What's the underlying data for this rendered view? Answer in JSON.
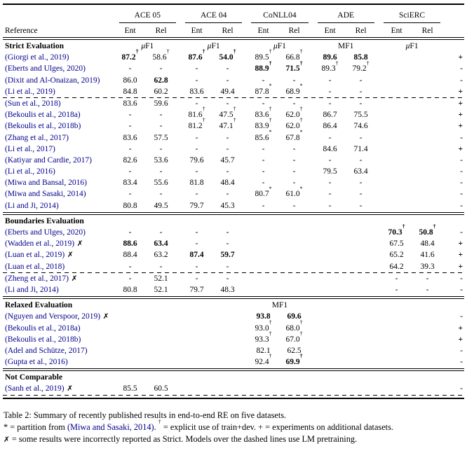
{
  "colors": {
    "citation_link": "#00008b",
    "text": "#000000",
    "background": "#ffffff"
  },
  "table": {
    "reference_label": "Reference",
    "datasets": [
      "ACE 05",
      "ACE 04",
      "CoNLL04",
      "ADE",
      "SciERC"
    ],
    "subheader": [
      "Ent",
      "Rel"
    ],
    "sections": [
      {
        "title": "Strict Evaluation",
        "metrics": [
          "μF1",
          "μF1",
          "μF1",
          "MF1",
          "μF1"
        ],
        "rows": [
          {
            "ref": "(Giorgi et al., 2019)",
            "cells": [
              {
                "v": "87.2",
                "sup": "†",
                "b": 1
              },
              {
                "v": "58.6",
                "sup": "†"
              },
              {
                "v": "87.6",
                "sup": "†",
                "b": 1
              },
              {
                "v": "54.0",
                "sup": "†",
                "b": 1
              },
              {
                "v": "89.5",
                "sup": "†"
              },
              {
                "v": "66.8",
                "sup": "†"
              },
              {
                "v": "89.6",
                "b": 1
              },
              {
                "v": "85.8",
                "b": 1
              },
              "",
              ""
            ],
            "marker": "+"
          },
          {
            "ref": "(Eberts and Ulges, 2020)",
            "cells": [
              "-",
              "-",
              "-",
              "-",
              {
                "v": "88.9",
                "sup": "†",
                "b": 1
              },
              {
                "v": "71.5",
                "sup": "†",
                "b": 1
              },
              {
                "v": "89.3",
                "sup": "†"
              },
              {
                "v": "79.2",
                "sup": "†"
              },
              "",
              ""
            ],
            "marker": "-"
          },
          {
            "ref": "(Dixit and Al-Onaizan, 2019)",
            "cells": [
              "86.0",
              {
                "v": "62.8",
                "b": 1
              },
              "-",
              "-",
              "-",
              "-",
              "-",
              "-",
              "",
              ""
            ],
            "marker": "-"
          },
          {
            "ref": "(Li et al., 2019)",
            "cells": [
              "84.8",
              "60.2",
              "83.6",
              "49.4",
              {
                "v": "87.8",
                "sup": "*"
              },
              {
                "v": "68.9",
                "sup": "*"
              },
              "-",
              "-",
              "",
              ""
            ],
            "marker": "+",
            "dashed_below": true
          },
          {
            "ref": "(Sun et al., 2018)",
            "cells": [
              "83.6",
              "59.6",
              "-",
              "-",
              "-",
              "-",
              "-",
              "-",
              "",
              ""
            ],
            "marker": "+"
          },
          {
            "ref": "(Bekoulis et al., 2018a)",
            "cells": [
              "-",
              "-",
              {
                "v": "81.6",
                "sup": "†"
              },
              {
                "v": "47.5",
                "sup": "†"
              },
              {
                "v": "83.6",
                "sup": "†"
              },
              {
                "v": "62.0",
                "sup": "†"
              },
              "86.7",
              "75.5",
              "",
              ""
            ],
            "marker": "+"
          },
          {
            "ref": "(Bekoulis et al., 2018b)",
            "cells": [
              "-",
              "-",
              {
                "v": "81.2",
                "sup": "†"
              },
              {
                "v": "47.1",
                "sup": "†"
              },
              {
                "v": "83.9",
                "sup": "†"
              },
              {
                "v": "62.0",
                "sup": "†"
              },
              "86.4",
              "74.6",
              "",
              ""
            ],
            "marker": "+"
          },
          {
            "ref": "(Zhang et al., 2017)",
            "cells": [
              "83.6",
              "57.5",
              "-",
              "-",
              {
                "v": "85.6",
                "sup": "*"
              },
              {
                "v": "67.8",
                "sup": "*"
              },
              "-",
              "-",
              "",
              ""
            ],
            "marker": "-"
          },
          {
            "ref": "(Li et al., 2017)",
            "cells": [
              "-",
              "-",
              "-",
              "-",
              "-",
              "-",
              "84.6",
              "71.4",
              "",
              ""
            ],
            "marker": "+"
          },
          {
            "ref": "(Katiyar and Cardie, 2017)",
            "cells": [
              "82.6",
              "53.6",
              "79.6",
              "45.7",
              "-",
              "-",
              "-",
              "-",
              "",
              ""
            ],
            "marker": "-"
          },
          {
            "ref": "(Li et al., 2016)",
            "cells": [
              "-",
              "-",
              "-",
              "-",
              "-",
              "-",
              "79.5",
              "63.4",
              "",
              ""
            ],
            "marker": "-"
          },
          {
            "ref": "(Miwa and Bansal, 2016)",
            "cells": [
              "83.4",
              "55.6",
              "81.8",
              "48.4",
              "-",
              "-",
              "-",
              "-",
              "",
              ""
            ],
            "marker": "-"
          },
          {
            "ref": "(Miwa and Sasaki, 2014)",
            "cells": [
              "-",
              "-",
              "-",
              "-",
              {
                "v": "80.7",
                "sup": "*"
              },
              {
                "v": "61.0",
                "sup": "*"
              },
              "-",
              "-",
              "",
              ""
            ],
            "marker": "-"
          },
          {
            "ref": "(Li and Ji, 2014)",
            "cells": [
              "80.8",
              "49.5",
              "79.7",
              "45.3",
              "-",
              "-",
              "-",
              "-",
              "",
              ""
            ],
            "marker": "-"
          }
        ]
      },
      {
        "title": "Boundaries Evaluation",
        "metrics": [
          "",
          "",
          "",
          "",
          ""
        ],
        "rows": [
          {
            "ref": "(Eberts and Ulges, 2020)",
            "cells": [
              "-",
              "-",
              "-",
              "-",
              "",
              "",
              "",
              "",
              {
                "v": "70.3",
                "sup": "†",
                "b": 1
              },
              {
                "v": "50.8",
                "sup": "†",
                "b": 1
              }
            ],
            "marker": "-"
          },
          {
            "ref": "(Wadden et al., 2019)",
            "x": true,
            "cells": [
              {
                "v": "88.6",
                "b": 1
              },
              {
                "v": "63.4",
                "b": 1
              },
              "-",
              "-",
              "",
              "",
              "",
              "",
              "67.5",
              "48.4"
            ],
            "marker": "+"
          },
          {
            "ref": "(Luan et al., 2019)",
            "x": true,
            "cells": [
              "88.4",
              "63.2",
              {
                "v": "87.4",
                "b": 1
              },
              {
                "v": "59.7",
                "b": 1
              },
              "",
              "",
              "",
              "",
              "65.2",
              "41.6"
            ],
            "marker": "+"
          },
          {
            "ref": "(Luan et al., 2018)",
            "cells": [
              "-",
              "-",
              "-",
              "-",
              "",
              "",
              "",
              "",
              "64.2",
              "39.3"
            ],
            "marker": "+",
            "dashed_below": true
          },
          {
            "ref": "(Zheng et al., 2017)",
            "x": true,
            "cells": [
              "-",
              "52.1",
              "-",
              "-",
              "",
              "",
              "",
              "",
              "-",
              "-"
            ],
            "marker": "-"
          },
          {
            "ref": "(Li and Ji, 2014)",
            "cells": [
              "80.8",
              "52.1",
              "79.7",
              "48.3",
              "",
              "",
              "",
              "",
              "-",
              "-"
            ],
            "marker": "-"
          }
        ]
      },
      {
        "title": "Relaxed Evaluation",
        "metrics": [
          "",
          "",
          "MF1",
          "",
          ""
        ],
        "rows": [
          {
            "ref": "(Nguyen and Verspoor, 2019)",
            "x": true,
            "cells": [
              "",
              "",
              "",
              "",
              {
                "v": "93.8",
                "b": 1
              },
              {
                "v": "69.6",
                "b": 1
              },
              "",
              "",
              "",
              ""
            ],
            "marker": "-"
          },
          {
            "ref": "(Bekoulis et al., 2018a)",
            "cells": [
              "",
              "",
              "",
              "",
              {
                "v": "93.0",
                "sup": "†"
              },
              {
                "v": "68.0",
                "sup": "†"
              },
              "",
              "",
              "",
              ""
            ],
            "marker": "+"
          },
          {
            "ref": "(Bekoulis et al., 2018b)",
            "cells": [
              "",
              "",
              "",
              "",
              {
                "v": "93.3",
                "sup": "†"
              },
              {
                "v": "67.0",
                "sup": "†"
              },
              "",
              "",
              "",
              ""
            ],
            "marker": "+"
          },
          {
            "ref": "(Adel and Schütze, 2017)",
            "cells": [
              "",
              "",
              "",
              "",
              "82.1",
              "62.5",
              "",
              "",
              "",
              ""
            ],
            "marker": "-"
          },
          {
            "ref": "(Gupta et al., 2016)",
            "cells": [
              "",
              "",
              "",
              "",
              {
                "v": "92.4",
                "sup": "†"
              },
              {
                "v": "69.9",
                "sup": "†",
                "b": 1
              },
              "",
              "",
              "",
              ""
            ],
            "marker": "-"
          }
        ]
      },
      {
        "title": "Not Comparable",
        "metrics": [
          "",
          "",
          "",
          "",
          ""
        ],
        "rows": [
          {
            "ref": "(Sanh et al., 2019)",
            "x": true,
            "cells": [
              "85.5",
              "60.5",
              "",
              "",
              "",
              "",
              "",
              "",
              "",
              ""
            ],
            "marker": "-",
            "dashed_below": true
          }
        ]
      }
    ]
  },
  "caption": {
    "line1": [
      {
        "t": "Table 2: Summary of recently published results in end-to-end RE on five datasets."
      }
    ],
    "line2": [
      {
        "t": "* = partition from "
      },
      {
        "t": "(Miwa and Sasaki, 2014)",
        "cite": true
      },
      {
        "t": ". "
      },
      {
        "t": "†",
        "sup": true
      },
      {
        "t": " = explicit use of train+dev. + = experiments on additional datasets."
      }
    ],
    "line3": [
      {
        "t": "✗",
        "flag": true
      },
      {
        "t": " = some results were incorrectly reported as Strict. Models over the dashed lines use LM pretraining."
      }
    ]
  }
}
